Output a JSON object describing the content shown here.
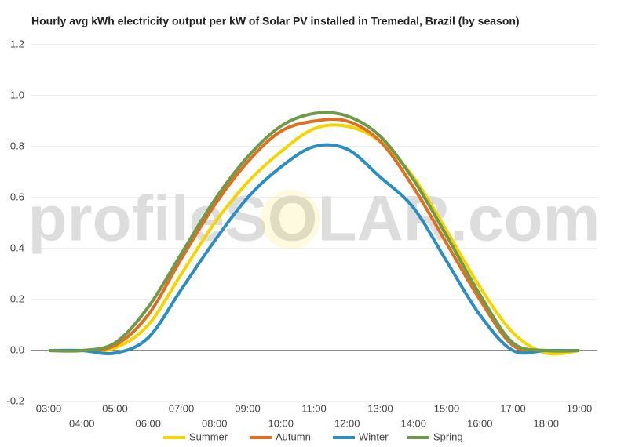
{
  "chart_data": {
    "type": "line",
    "title": "Hourly avg kWh electricity output per kW of Solar PV installed in Tremedal, Brazil (by season)",
    "watermark": "profileSOLAR.com",
    "categories": [
      "03:00",
      "04:00",
      "05:00",
      "06:00",
      "07:00",
      "08:00",
      "09:00",
      "10:00",
      "11:00",
      "12:00",
      "13:00",
      "14:00",
      "15:00",
      "16:00",
      "17:00",
      "18:00",
      "19:00"
    ],
    "series": [
      {
        "name": "Summer",
        "color": "#f5d400",
        "values": [
          0,
          0,
          0.01,
          0.1,
          0.3,
          0.5,
          0.66,
          0.78,
          0.87,
          0.88,
          0.82,
          0.68,
          0.47,
          0.25,
          0.07,
          -0.01,
          0
        ]
      },
      {
        "name": "Autumn",
        "color": "#e07020",
        "values": [
          0,
          0,
          0.02,
          0.14,
          0.36,
          0.57,
          0.74,
          0.86,
          0.9,
          0.9,
          0.82,
          0.64,
          0.42,
          0.2,
          0.02,
          0,
          0
        ]
      },
      {
        "name": "Winter",
        "color": "#2a8fc0",
        "values": [
          0,
          0,
          -0.01,
          0.05,
          0.24,
          0.43,
          0.6,
          0.72,
          0.8,
          0.79,
          0.68,
          0.56,
          0.35,
          0.14,
          0,
          0,
          0
        ]
      },
      {
        "name": "Spring",
        "color": "#6e9a4a",
        "values": [
          0,
          0,
          0.03,
          0.17,
          0.38,
          0.59,
          0.76,
          0.88,
          0.93,
          0.92,
          0.84,
          0.67,
          0.45,
          0.22,
          0.03,
          0,
          0
        ]
      }
    ],
    "ylim": [
      -0.2,
      1.2
    ],
    "yticks": [
      -0.2,
      {
        "value": 0,
        "label": "0.0"
      },
      0.2,
      0.4,
      0.6,
      0.8,
      {
        "value": 1,
        "label": "1.0"
      },
      1.2
    ],
    "grid": true,
    "legend": "bottom"
  }
}
